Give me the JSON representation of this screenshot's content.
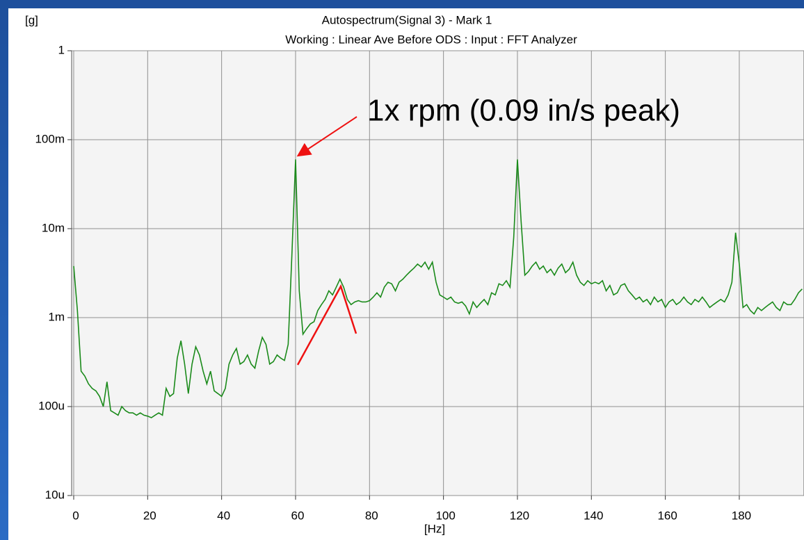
{
  "chart_data": {
    "type": "line",
    "title": "Autospectrum(Signal 3) - Mark 1",
    "subtitle": "Working : Linear Ave Before ODS : Input : FFT Analyzer",
    "y_label": "[g]",
    "x_label": "[Hz]",
    "annotation": "1x rpm (0.09 in/s peak)",
    "color": "#1a8a1a",
    "log_y": true,
    "grid": true,
    "xlim": [
      -0.56,
      197.5
    ],
    "ylim": [
      1e-05,
      1
    ],
    "xticks": [
      0,
      20,
      40,
      60,
      80,
      100,
      120,
      140,
      160,
      180,
      200
    ],
    "yticks": [
      {
        "value": 1,
        "label": "1"
      },
      {
        "value": 0.1,
        "label": "100m"
      },
      {
        "value": 0.01,
        "label": "10m"
      },
      {
        "value": 0.001,
        "label": "1m"
      },
      {
        "value": 0.0001,
        "label": "100u"
      },
      {
        "value": 1e-05,
        "label": "10u"
      }
    ],
    "x": [
      0,
      1,
      2,
      3,
      4,
      5,
      6,
      7,
      8,
      9,
      10,
      11,
      12,
      13,
      14,
      15,
      16,
      17,
      18,
      19,
      20,
      21,
      22,
      23,
      24,
      25,
      26,
      27,
      28,
      29,
      30,
      31,
      32,
      33,
      34,
      35,
      36,
      37,
      38,
      39,
      40,
      41,
      42,
      43,
      44,
      45,
      46,
      47,
      48,
      49,
      50,
      51,
      52,
      53,
      54,
      55,
      56,
      57,
      58,
      59,
      60,
      61,
      62,
      63,
      64,
      65,
      66,
      67,
      68,
      69,
      70,
      71,
      72,
      73,
      74,
      75,
      76,
      77,
      78,
      79,
      80,
      81,
      82,
      83,
      84,
      85,
      86,
      87,
      88,
      89,
      90,
      91,
      92,
      93,
      94,
      95,
      96,
      97,
      98,
      99,
      100,
      101,
      102,
      103,
      104,
      105,
      106,
      107,
      108,
      109,
      110,
      111,
      112,
      113,
      114,
      115,
      116,
      117,
      118,
      119,
      120,
      121,
      122,
      123,
      124,
      125,
      126,
      127,
      128,
      129,
      130,
      131,
      132,
      133,
      134,
      135,
      136,
      137,
      138,
      139,
      140,
      141,
      142,
      143,
      144,
      145,
      146,
      147,
      148,
      149,
      150,
      151,
      152,
      153,
      154,
      155,
      156,
      157,
      158,
      159,
      160,
      161,
      162,
      163,
      164,
      165,
      166,
      167,
      168,
      169,
      170,
      171,
      172,
      173,
      174,
      175,
      176,
      177,
      178,
      179,
      180,
      181,
      182,
      183,
      184,
      185,
      186,
      187,
      188,
      189,
      190,
      191,
      192,
      193,
      194,
      195,
      196,
      197
    ],
    "values": [
      0.0038,
      0.0012,
      0.00025,
      0.00022,
      0.00018,
      0.00016,
      0.00015,
      0.00013,
      0.0001,
      0.00019,
      9e-05,
      8.5e-05,
      8e-05,
      0.0001,
      9e-05,
      8.5e-05,
      8.5e-05,
      8e-05,
      8.5e-05,
      8e-05,
      7.8e-05,
      7.5e-05,
      8e-05,
      8.5e-05,
      8e-05,
      0.00016,
      0.00013,
      0.00014,
      0.00035,
      0.00055,
      0.0003,
      0.00014,
      0.0003,
      0.00047,
      0.00038,
      0.00025,
      0.00018,
      0.00025,
      0.00015,
      0.00014,
      0.00013,
      0.00016,
      0.0003,
      0.00038,
      0.00045,
      0.0003,
      0.00032,
      0.00038,
      0.0003,
      0.00027,
      0.00042,
      0.0006,
      0.0005,
      0.0003,
      0.00032,
      0.00038,
      0.00035,
      0.00033,
      0.0005,
      0.005,
      0.06,
      0.002,
      0.00065,
      0.00075,
      0.00085,
      0.0009,
      0.0012,
      0.0014,
      0.0016,
      0.002,
      0.0018,
      0.0022,
      0.0027,
      0.0022,
      0.0016,
      0.0014,
      0.0015,
      0.00155,
      0.0015,
      0.0015,
      0.00155,
      0.0017,
      0.0019,
      0.0017,
      0.0022,
      0.0025,
      0.0024,
      0.002,
      0.0025,
      0.0027,
      0.003,
      0.0033,
      0.0036,
      0.004,
      0.0037,
      0.0042,
      0.0035,
      0.0042,
      0.0025,
      0.0018,
      0.0017,
      0.0016,
      0.0017,
      0.0015,
      0.00145,
      0.0015,
      0.00135,
      0.0011,
      0.0015,
      0.0013,
      0.00145,
      0.0016,
      0.0014,
      0.0019,
      0.0018,
      0.0024,
      0.0023,
      0.0026,
      0.0022,
      0.008,
      0.06,
      0.012,
      0.003,
      0.0033,
      0.0038,
      0.0042,
      0.0035,
      0.0038,
      0.0032,
      0.0035,
      0.003,
      0.0036,
      0.004,
      0.0032,
      0.0035,
      0.0042,
      0.003,
      0.0025,
      0.0023,
      0.0026,
      0.0024,
      0.0025,
      0.0024,
      0.0026,
      0.002,
      0.0023,
      0.0018,
      0.0019,
      0.0023,
      0.0024,
      0.002,
      0.0018,
      0.0016,
      0.0017,
      0.0015,
      0.0016,
      0.0014,
      0.0017,
      0.0015,
      0.0016,
      0.0013,
      0.0015,
      0.0016,
      0.0014,
      0.0015,
      0.0017,
      0.0015,
      0.0014,
      0.0016,
      0.0015,
      0.0017,
      0.0015,
      0.0013,
      0.0014,
      0.0015,
      0.0016,
      0.0015,
      0.0018,
      0.0025,
      0.009,
      0.004,
      0.0013,
      0.0014,
      0.0012,
      0.0011,
      0.0013,
      0.0012,
      0.0013,
      0.0014,
      0.0015,
      0.0013,
      0.0012,
      0.0015,
      0.0014,
      0.0014,
      0.0016,
      0.0019,
      0.0021
    ]
  }
}
